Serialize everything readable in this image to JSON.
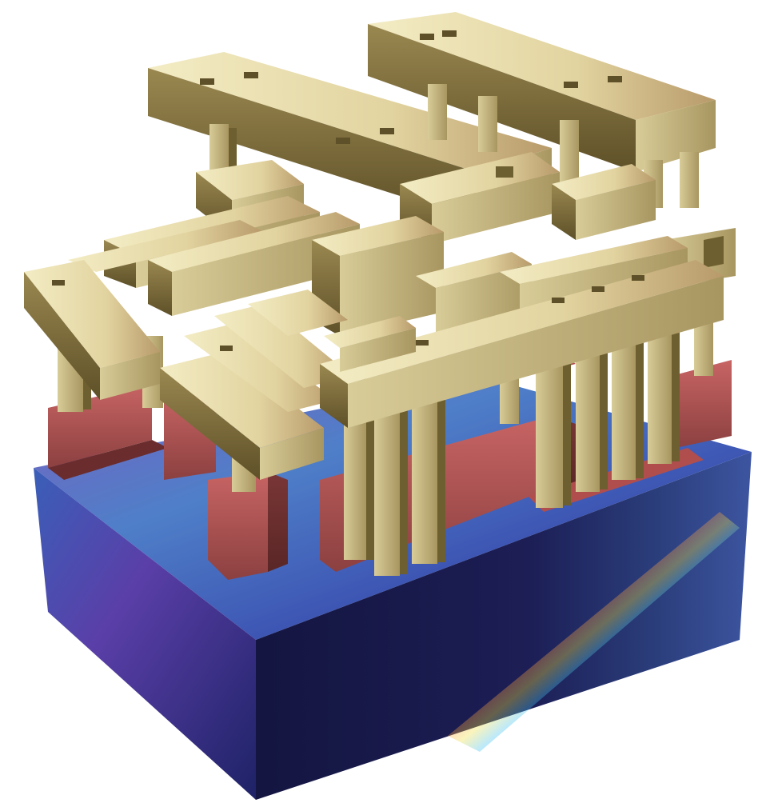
{
  "image": {
    "subject": "3d-integrated-circuit-cross-section-render",
    "palette": {
      "background": "#ffffff",
      "substrate_top": "#4a5bb8",
      "substrate_front": "#1a1b4a",
      "substrate_side": "#2b2f7a",
      "contact_red": "#b85a5a",
      "contact_red_dark": "#7a3838",
      "metal_light": "#efe6b8",
      "metal_mid": "#c9b982",
      "metal_dark": "#6e5f30"
    }
  }
}
